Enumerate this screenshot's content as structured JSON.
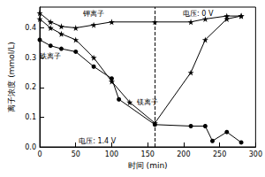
{
  "chart_data": {
    "type": "line",
    "x_label": "时间 (min)",
    "y_label": "离子浓度 (mmol/L)",
    "xlim": [
      0,
      300
    ],
    "xticks": [
      0,
      50,
      100,
      150,
      200,
      250,
      300
    ],
    "ylim": [
      0,
      0.47
    ],
    "yticks": [
      {
        "value": 0,
        "label": "0.0"
      },
      0.1,
      0.2,
      0.3,
      0.4
    ],
    "grid": false,
    "phases": [
      {
        "label": "电压: 1.4 V",
        "x": [
          0,
          160
        ]
      },
      {
        "label": "电压: 0 V",
        "x": [
          160,
          280
        ]
      }
    ],
    "series": [
      {
        "name": "钾离子",
        "color": "#000000",
        "marker": "star",
        "x": [
          0,
          15,
          30,
          50,
          75,
          100,
          160,
          210,
          230,
          260,
          280
        ],
        "values": [
          0.45,
          0.42,
          0.405,
          0.4,
          0.41,
          0.42,
          0.42,
          0.42,
          0.43,
          0.44,
          0.44
        ]
      },
      {
        "name": "镁离子",
        "color": "#000000",
        "marker": "star",
        "x": [
          0,
          15,
          30,
          50,
          75,
          100,
          125,
          160,
          210,
          230,
          260,
          280
        ],
        "values": [
          0.43,
          0.4,
          0.38,
          0.36,
          0.3,
          0.22,
          0.15,
          0.08,
          0.25,
          0.36,
          0.43,
          0.44
        ]
      },
      {
        "name": "铁离子",
        "color": "#000000",
        "marker": "circle",
        "x": [
          0,
          15,
          30,
          50,
          75,
          100,
          110,
          160,
          210,
          230,
          240,
          260,
          280
        ],
        "values": [
          0.36,
          0.34,
          0.33,
          0.32,
          0.27,
          0.23,
          0.16,
          0.075,
          0.07,
          0.07,
          0.02,
          0.05,
          0.015
        ]
      }
    ]
  }
}
